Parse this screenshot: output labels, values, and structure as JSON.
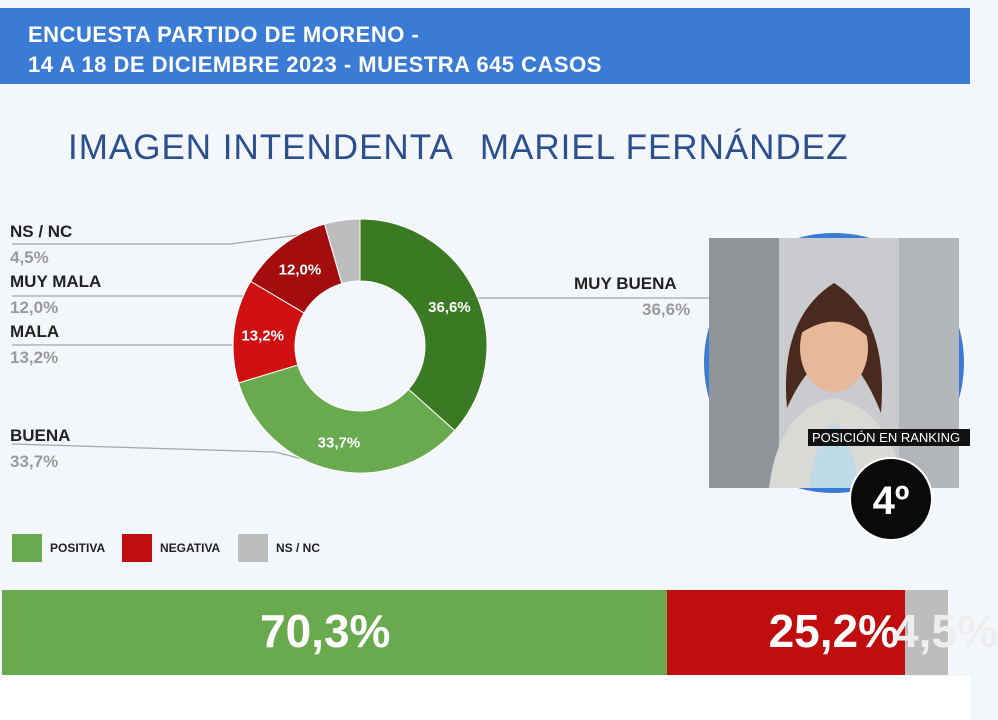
{
  "header": {
    "line1": "ENCUESTA PARTIDO DE MORENO -",
    "line2": "14 A 18 DE DICIEMBRE 2023 - MUESTRA 645 CASOS"
  },
  "title": {
    "part1": "IMAGEN INTENDENTA",
    "part2": "MARIEL FERNÁNDEZ"
  },
  "labels": {
    "ns_nc": {
      "name": "NS / NC",
      "value": "4,5%"
    },
    "muy_mala": {
      "name": "MUY MALA",
      "value": "12,0%"
    },
    "mala": {
      "name": "MALA",
      "value": "13,2%"
    },
    "buena": {
      "name": "BUENA",
      "value": "33,7%"
    },
    "muy_buena": {
      "name": "MUY BUENA",
      "value": "36,6%"
    }
  },
  "ranking": {
    "label": "POSICIÓN EN RANKING",
    "position": "4º"
  },
  "legend": {
    "positiva": "POSITIVA",
    "negativa": "NEGATIVA",
    "ns_nc": "NS / NC"
  },
  "colors": {
    "muy_buena": "#3a7a22",
    "buena": "#6aaa4f",
    "mala": "#d01010",
    "muy_mala": "#a30d0d",
    "ns_nc": "#bdbdbd",
    "positiva": "#6aaa4f",
    "negativa": "#c00d0d",
    "brand_blue": "#3a7bd5"
  },
  "chart_data": [
    {
      "type": "pie",
      "title": "IMAGEN INTENDENTA MARIEL FERNÁNDEZ",
      "categories": [
        "MUY BUENA",
        "BUENA",
        "MALA",
        "MUY MALA",
        "NS / NC"
      ],
      "values": [
        36.6,
        33.7,
        13.2,
        12.0,
        4.5
      ],
      "data_labels": [
        "36,6%",
        "33,7%",
        "13,2%",
        "12,0%",
        ""
      ],
      "donut": true
    },
    {
      "type": "bar",
      "orientation": "horizontal-stacked",
      "categories": [
        "POSITIVA",
        "NEGATIVA",
        "NS / NC"
      ],
      "values": [
        70.3,
        25.2,
        4.5
      ],
      "data_labels": [
        "70,3%",
        "25,2%",
        "4,5%"
      ]
    }
  ]
}
